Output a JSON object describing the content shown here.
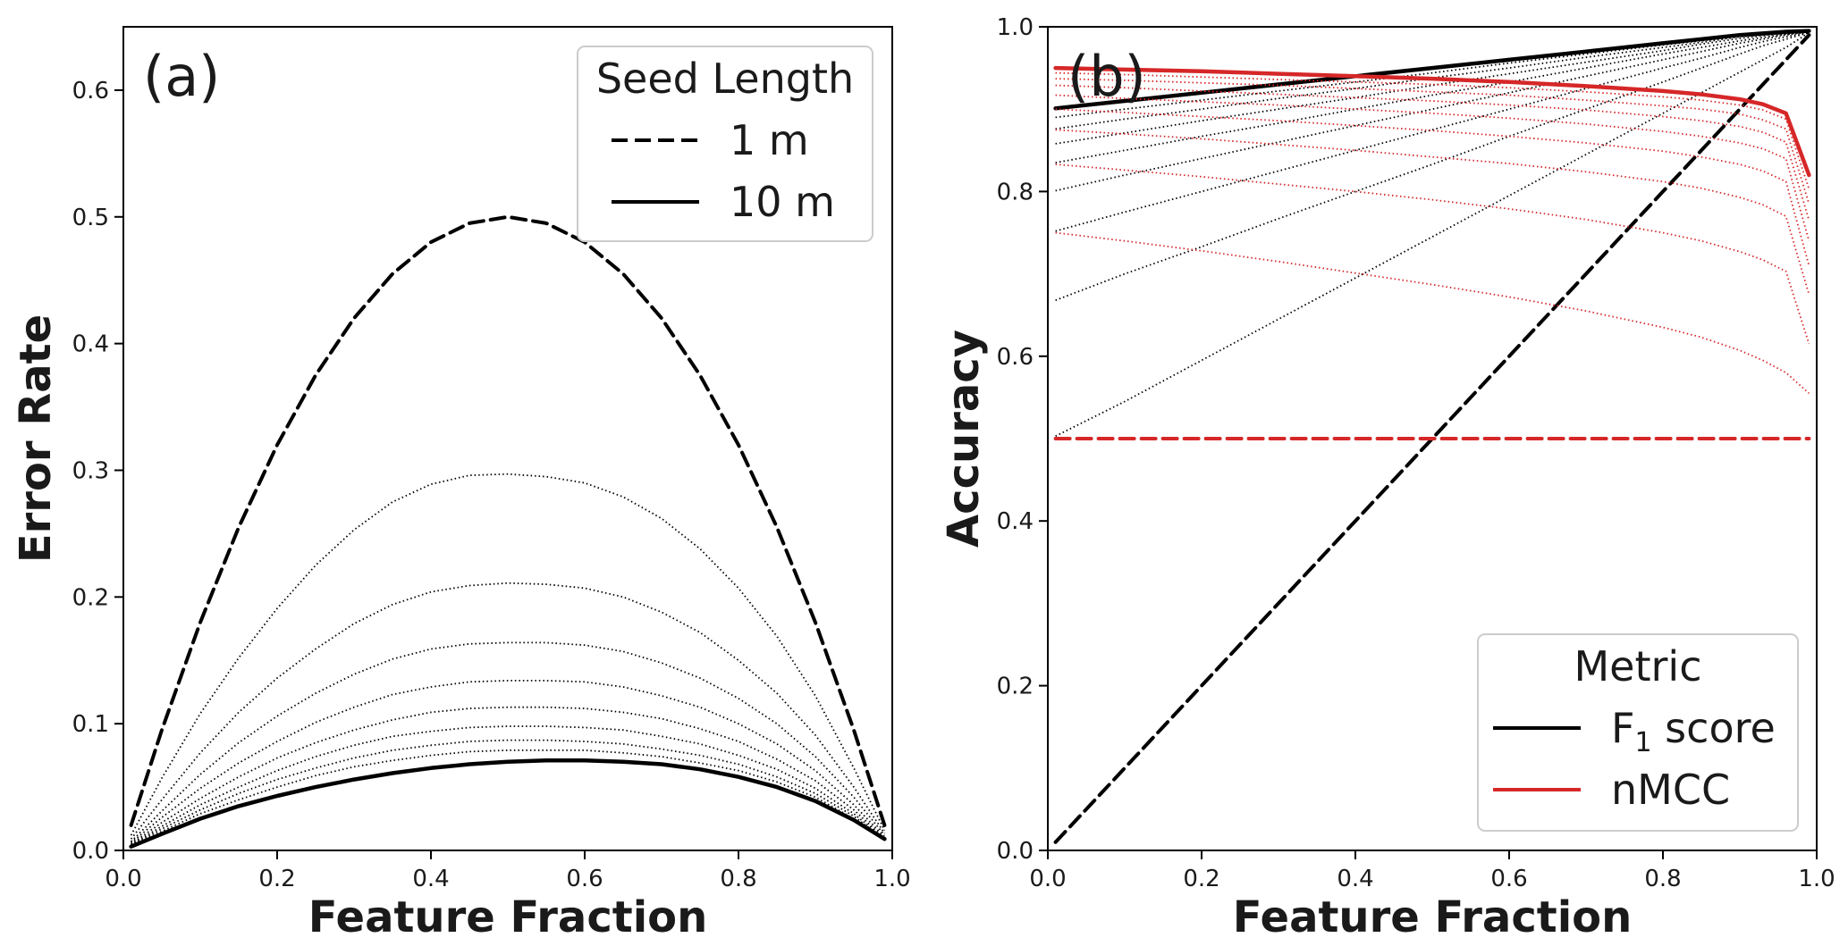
{
  "chart_data": [
    {
      "panel": "(a)",
      "type": "line",
      "xlabel": "Feature Fraction",
      "ylabel": "Error Rate",
      "xlim": [
        0.0,
        1.0
      ],
      "ylim": [
        0.0,
        0.65
      ],
      "xticks": [
        "0.0",
        "0.2",
        "0.4",
        "0.6",
        "0.8",
        "1.0"
      ],
      "yticks": [
        "0.0",
        "0.1",
        "0.2",
        "0.3",
        "0.4",
        "0.5",
        "0.6"
      ],
      "grid": false,
      "legend": {
        "title": "Seed Length",
        "placement": "top-right",
        "entries": [
          {
            "label": "1 m",
            "style": "dashed",
            "color": "#000000"
          },
          {
            "label": "10 m",
            "style": "solid",
            "color": "#000000"
          }
        ]
      },
      "x": [
        0.01,
        0.05,
        0.1,
        0.15,
        0.2,
        0.25,
        0.3,
        0.35,
        0.4,
        0.45,
        0.5,
        0.55,
        0.6,
        0.65,
        0.7,
        0.75,
        0.8,
        0.85,
        0.9,
        0.95,
        0.99
      ],
      "series": [
        {
          "name": "1 m",
          "style": "dashed",
          "values": [
            0.0198,
            0.095,
            0.18,
            0.255,
            0.32,
            0.375,
            0.42,
            0.455,
            0.48,
            0.495,
            0.5,
            0.495,
            0.48,
            0.455,
            0.42,
            0.375,
            0.32,
            0.255,
            0.18,
            0.095,
            0.0198
          ]
        },
        {
          "name": "2 m",
          "style": "dotted",
          "values": [
            0.012,
            0.057,
            0.108,
            0.152,
            0.191,
            0.225,
            0.253,
            0.275,
            0.289,
            0.296,
            0.297,
            0.295,
            0.29,
            0.279,
            0.262,
            0.238,
            0.207,
            0.169,
            0.122,
            0.065,
            0.0158
          ]
        },
        {
          "name": "3 m",
          "style": "dotted",
          "values": [
            0.009,
            0.04,
            0.077,
            0.109,
            0.136,
            0.159,
            0.179,
            0.194,
            0.204,
            0.209,
            0.211,
            0.21,
            0.207,
            0.2,
            0.188,
            0.172,
            0.15,
            0.124,
            0.091,
            0.05,
            0.0134
          ]
        },
        {
          "name": "4 m",
          "style": "dotted",
          "values": [
            0.007,
            0.031,
            0.06,
            0.085,
            0.106,
            0.124,
            0.139,
            0.151,
            0.159,
            0.163,
            0.164,
            0.164,
            0.162,
            0.157,
            0.148,
            0.136,
            0.12,
            0.1,
            0.074,
            0.042,
            0.012
          ]
        },
        {
          "name": "5 m",
          "style": "dotted",
          "values": [
            0.006,
            0.026,
            0.049,
            0.069,
            0.086,
            0.101,
            0.113,
            0.123,
            0.129,
            0.133,
            0.134,
            0.134,
            0.133,
            0.129,
            0.122,
            0.113,
            0.1,
            0.084,
            0.063,
            0.036,
            0.0105
          ]
        },
        {
          "name": "6 m",
          "style": "dotted",
          "values": [
            0.005,
            0.022,
            0.041,
            0.058,
            0.073,
            0.085,
            0.095,
            0.103,
            0.109,
            0.112,
            0.113,
            0.113,
            0.112,
            0.109,
            0.104,
            0.096,
            0.086,
            0.072,
            0.055,
            0.032,
            0.0095
          ]
        },
        {
          "name": "7 m",
          "style": "dotted",
          "values": [
            0.0045,
            0.019,
            0.036,
            0.05,
            0.063,
            0.074,
            0.083,
            0.09,
            0.094,
            0.097,
            0.098,
            0.098,
            0.097,
            0.095,
            0.09,
            0.084,
            0.075,
            0.064,
            0.049,
            0.029,
            0.009
          ]
        },
        {
          "name": "8 m",
          "style": "dotted",
          "values": [
            0.004,
            0.017,
            0.032,
            0.045,
            0.056,
            0.065,
            0.073,
            0.079,
            0.083,
            0.086,
            0.087,
            0.087,
            0.086,
            0.084,
            0.08,
            0.075,
            0.068,
            0.058,
            0.045,
            0.027,
            0.0085
          ]
        },
        {
          "name": "9 m",
          "style": "dotted",
          "values": [
            0.0035,
            0.015,
            0.029,
            0.04,
            0.05,
            0.059,
            0.066,
            0.071,
            0.075,
            0.078,
            0.079,
            0.079,
            0.079,
            0.077,
            0.074,
            0.069,
            0.063,
            0.054,
            0.042,
            0.025,
            0.008
          ]
        },
        {
          "name": "10 m",
          "style": "solid",
          "values": [
            0.003,
            0.013,
            0.025,
            0.035,
            0.043,
            0.05,
            0.056,
            0.061,
            0.065,
            0.068,
            0.07,
            0.071,
            0.071,
            0.07,
            0.068,
            0.064,
            0.058,
            0.05,
            0.039,
            0.024,
            0.009
          ]
        }
      ]
    },
    {
      "panel": "(b)",
      "type": "line",
      "xlabel": "Feature Fraction",
      "ylabel": "Accuracy",
      "xlim": [
        0.0,
        1.0
      ],
      "ylim": [
        0.0,
        1.0
      ],
      "xticks": [
        "0.0",
        "0.2",
        "0.4",
        "0.6",
        "0.8",
        "1.0"
      ],
      "yticks": [
        "0.0",
        "0.2",
        "0.4",
        "0.6",
        "0.8",
        "1.0"
      ],
      "grid": false,
      "legend": {
        "title": "Metric",
        "placement": "bottom-right",
        "entries": [
          {
            "label": "F",
            "subscript": "1",
            "suffix": " score",
            "color": "#000000"
          },
          {
            "label": "nMCC",
            "color": "#d62728"
          }
        ]
      },
      "x": [
        0.01,
        0.1,
        0.2,
        0.3,
        0.4,
        0.5,
        0.6,
        0.7,
        0.8,
        0.85,
        0.9,
        0.93,
        0.96,
        0.99
      ],
      "series": [
        {
          "name": "F1 1 m",
          "color": "#000000",
          "style": "dashed",
          "values": [
            0.01,
            0.1,
            0.2,
            0.3,
            0.4,
            0.5,
            0.6,
            0.7,
            0.8,
            0.85,
            0.9,
            0.93,
            0.96,
            0.99
          ]
        },
        {
          "name": "F1 2 m",
          "color": "#000000",
          "style": "dotted",
          "values": [
            0.503,
            0.545,
            0.595,
            0.645,
            0.695,
            0.745,
            0.795,
            0.845,
            0.895,
            0.92,
            0.945,
            0.96,
            0.975,
            0.993
          ]
        },
        {
          "name": "F1 3 m",
          "color": "#000000",
          "style": "dotted",
          "values": [
            0.668,
            0.7,
            0.733,
            0.767,
            0.8,
            0.833,
            0.867,
            0.9,
            0.933,
            0.95,
            0.967,
            0.977,
            0.985,
            0.993
          ]
        },
        {
          "name": "F1 4 m",
          "color": "#000000",
          "style": "dotted",
          "values": [
            0.752,
            0.775,
            0.8,
            0.825,
            0.85,
            0.875,
            0.9,
            0.925,
            0.95,
            0.962,
            0.975,
            0.982,
            0.988,
            0.993
          ]
        },
        {
          "name": "F1 5 m",
          "color": "#000000",
          "style": "dotted",
          "values": [
            0.801,
            0.82,
            0.84,
            0.86,
            0.88,
            0.9,
            0.92,
            0.94,
            0.96,
            0.97,
            0.98,
            0.985,
            0.99,
            0.994
          ]
        },
        {
          "name": "F1 6 m",
          "color": "#000000",
          "style": "dotted",
          "values": [
            0.835,
            0.85,
            0.867,
            0.883,
            0.9,
            0.917,
            0.933,
            0.95,
            0.967,
            0.975,
            0.983,
            0.987,
            0.991,
            0.994
          ]
        },
        {
          "name": "F1 7 m",
          "color": "#000000",
          "style": "dotted",
          "values": [
            0.858,
            0.871,
            0.886,
            0.9,
            0.914,
            0.929,
            0.943,
            0.957,
            0.971,
            0.979,
            0.986,
            0.989,
            0.992,
            0.994
          ]
        },
        {
          "name": "F1 8 m",
          "color": "#000000",
          "style": "dotted",
          "values": [
            0.876,
            0.888,
            0.9,
            0.913,
            0.925,
            0.938,
            0.95,
            0.963,
            0.975,
            0.981,
            0.988,
            0.99,
            0.992,
            0.994
          ]
        },
        {
          "name": "F1 9 m",
          "color": "#000000",
          "style": "dotted",
          "values": [
            0.89,
            0.9,
            0.911,
            0.922,
            0.933,
            0.944,
            0.956,
            0.967,
            0.978,
            0.983,
            0.989,
            0.991,
            0.993,
            0.995
          ]
        },
        {
          "name": "F1 10 m",
          "color": "#000000",
          "style": "solid",
          "values": [
            0.901,
            0.91,
            0.92,
            0.93,
            0.94,
            0.95,
            0.96,
            0.97,
            0.98,
            0.985,
            0.99,
            0.992,
            0.994,
            0.995
          ]
        },
        {
          "name": "nMCC 1 m",
          "color": "#d62728",
          "style": "dashed",
          "values": [
            0.5,
            0.5,
            0.5,
            0.5,
            0.5,
            0.5,
            0.5,
            0.5,
            0.5,
            0.5,
            0.5,
            0.5,
            0.5,
            0.5
          ]
        },
        {
          "name": "nMCC 2 m",
          "color": "#d62728",
          "style": "dotted",
          "values": [
            0.75,
            0.74,
            0.728,
            0.715,
            0.701,
            0.687,
            0.672,
            0.655,
            0.635,
            0.623,
            0.607,
            0.595,
            0.58,
            0.555
          ]
        },
        {
          "name": "nMCC 3 m",
          "color": "#d62728",
          "style": "dotted",
          "values": [
            0.833,
            0.826,
            0.818,
            0.809,
            0.8,
            0.79,
            0.779,
            0.766,
            0.75,
            0.74,
            0.727,
            0.717,
            0.703,
            0.615
          ]
        },
        {
          "name": "nMCC 4 m",
          "color": "#d62728",
          "style": "dotted",
          "values": [
            0.875,
            0.87,
            0.864,
            0.857,
            0.85,
            0.842,
            0.834,
            0.824,
            0.812,
            0.804,
            0.793,
            0.784,
            0.77,
            0.675
          ]
        },
        {
          "name": "nMCC 5 m",
          "color": "#d62728",
          "style": "dotted",
          "values": [
            0.9,
            0.896,
            0.891,
            0.886,
            0.88,
            0.874,
            0.867,
            0.859,
            0.849,
            0.842,
            0.833,
            0.825,
            0.812,
            0.71
          ]
        },
        {
          "name": "nMCC 6 m",
          "color": "#d62728",
          "style": "dotted",
          "values": [
            0.917,
            0.913,
            0.909,
            0.905,
            0.9,
            0.895,
            0.889,
            0.882,
            0.873,
            0.867,
            0.859,
            0.852,
            0.84,
            0.74
          ]
        },
        {
          "name": "nMCC 7 m",
          "color": "#d62728",
          "style": "dotted",
          "values": [
            0.929,
            0.926,
            0.922,
            0.918,
            0.914,
            0.91,
            0.905,
            0.899,
            0.891,
            0.886,
            0.879,
            0.872,
            0.86,
            0.765
          ]
        },
        {
          "name": "nMCC 8 m",
          "color": "#d62728",
          "style": "dotted",
          "values": [
            0.937,
            0.935,
            0.932,
            0.929,
            0.925,
            0.921,
            0.917,
            0.911,
            0.904,
            0.9,
            0.894,
            0.887,
            0.876,
            0.785
          ]
        },
        {
          "name": "nMCC 9 m",
          "color": "#d62728",
          "style": "dotted",
          "values": [
            0.944,
            0.942,
            0.939,
            0.936,
            0.933,
            0.93,
            0.926,
            0.921,
            0.915,
            0.911,
            0.905,
            0.899,
            0.888,
            0.803
          ]
        },
        {
          "name": "nMCC 10 m",
          "color": "#d62728",
          "style": "solid",
          "values": [
            0.95,
            0.948,
            0.946,
            0.943,
            0.94,
            0.937,
            0.933,
            0.928,
            0.922,
            0.918,
            0.912,
            0.906,
            0.895,
            0.82
          ]
        }
      ]
    }
  ]
}
